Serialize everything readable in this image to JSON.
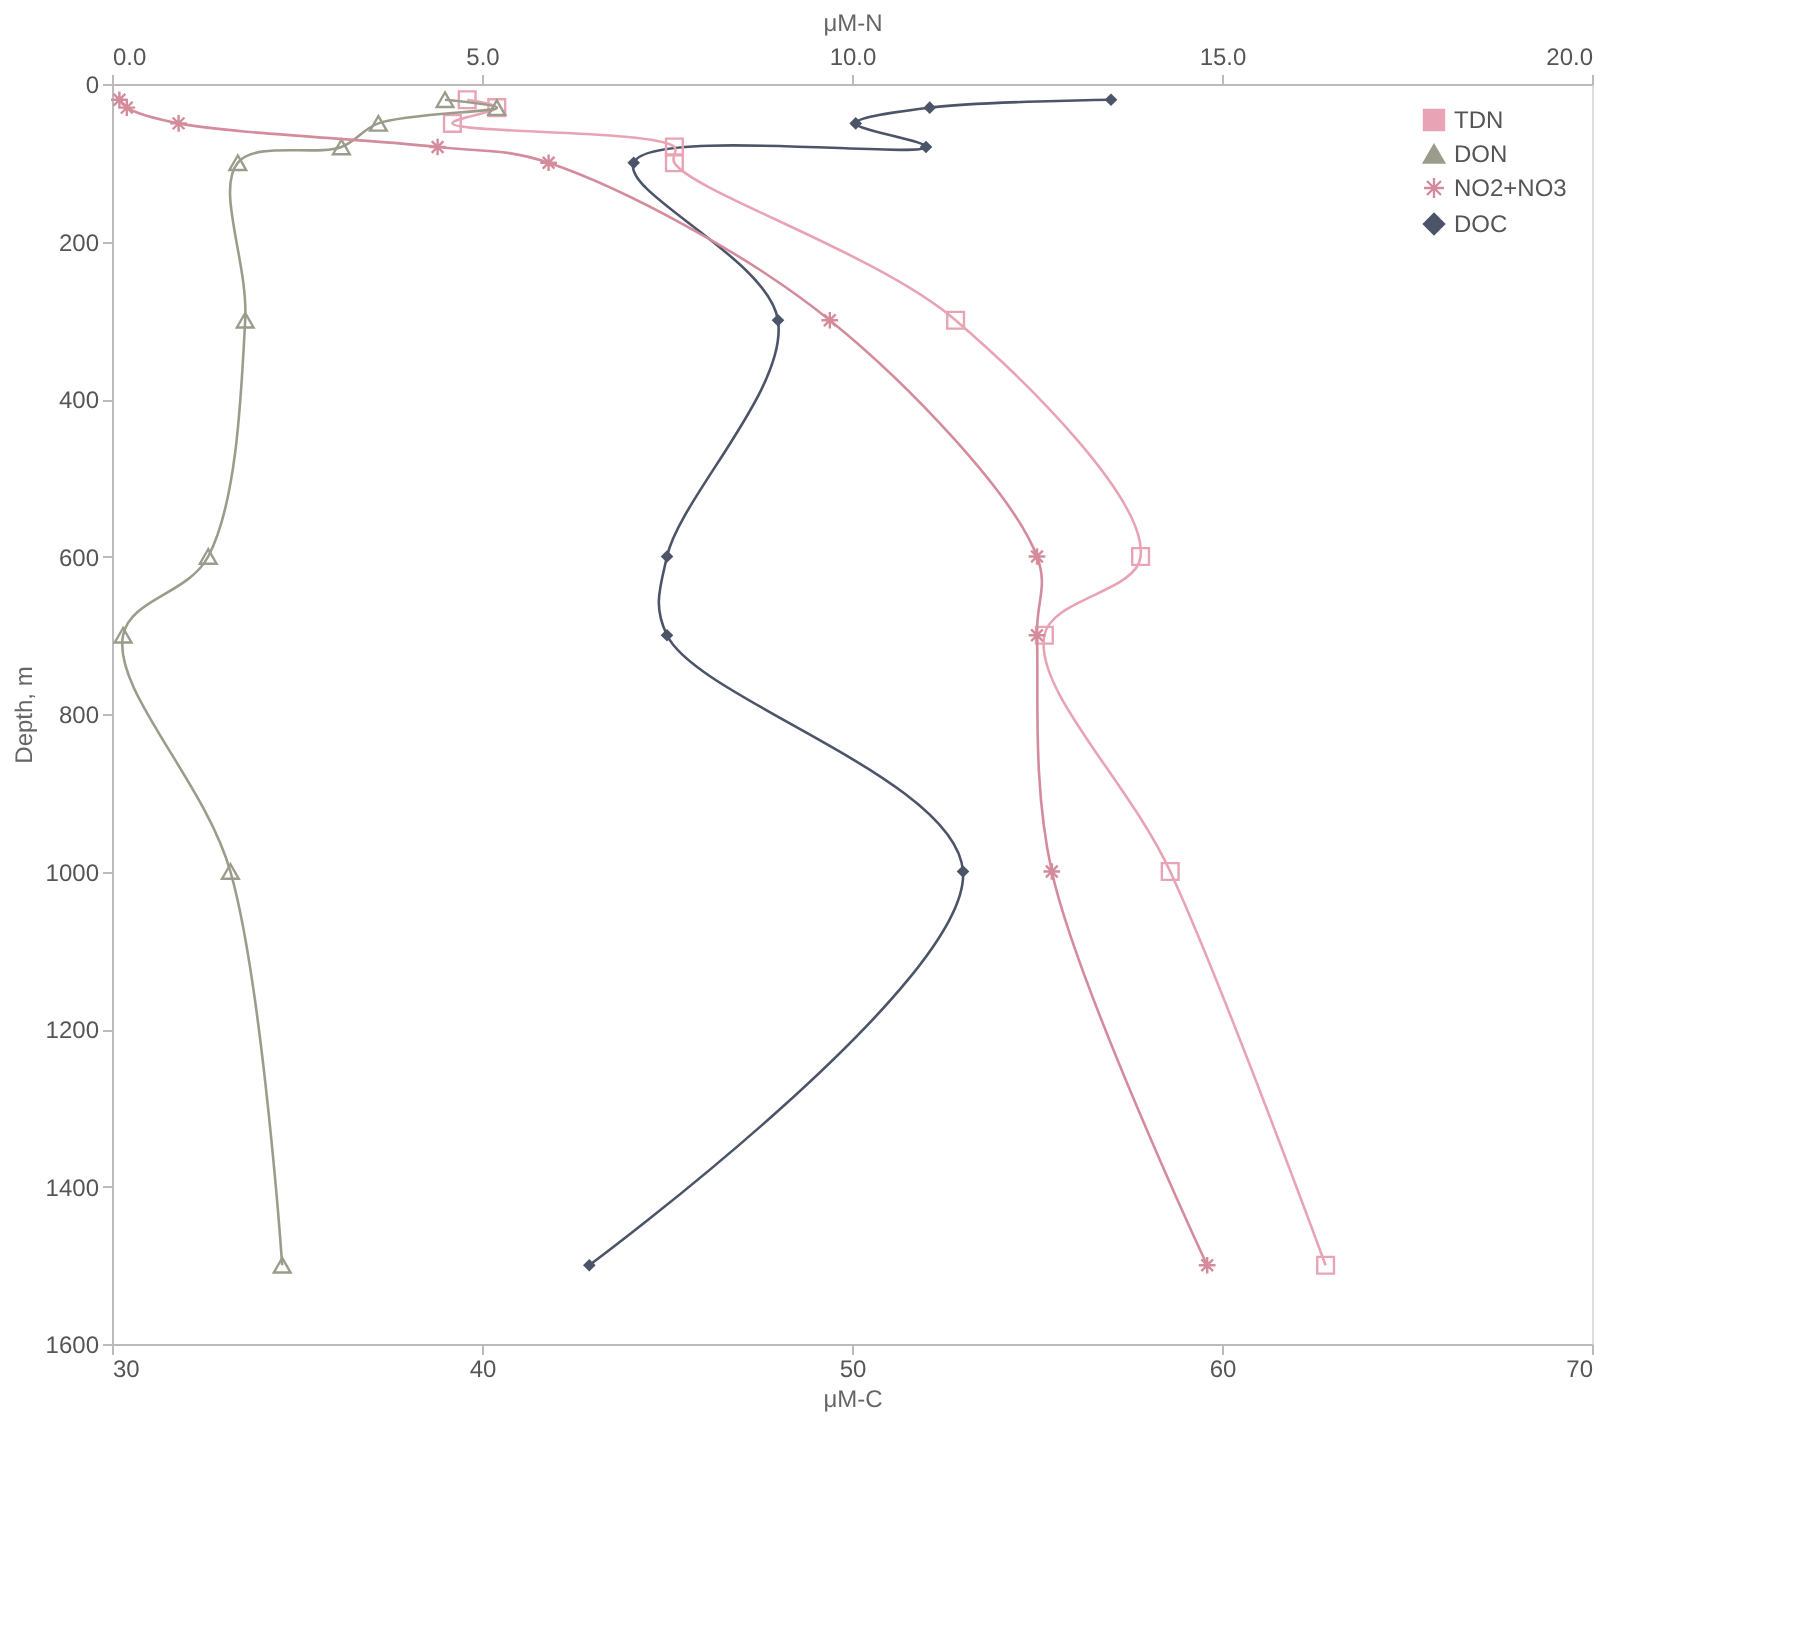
{
  "chart_data": {
    "type": "line",
    "xlabel": "μM-C",
    "x2label": "μM-N",
    "ylabel": "Depth, m",
    "xlim": [
      30,
      70
    ],
    "xticks": [
      30,
      40,
      50,
      60,
      70
    ],
    "x2lim": [
      0,
      20
    ],
    "x2ticks": [
      {
        "value": 0,
        "label": "0.0"
      },
      {
        "value": 5,
        "label": "5.0"
      },
      {
        "value": 10,
        "label": "10.0"
      },
      {
        "value": 15,
        "label": "15.0"
      },
      {
        "value": 20,
        "label": "20.0"
      }
    ],
    "ylim": [
      1600,
      0
    ],
    "yticks": [
      0,
      200,
      400,
      600,
      800,
      {
        "value": 1000,
        "label": "1000"
      },
      {
        "value": 1200,
        "label": "1200"
      },
      {
        "value": 1400,
        "label": "1400"
      },
      {
        "value": 1600,
        "label": "1600"
      }
    ],
    "line_style": "solid",
    "grid": false,
    "legend": "top right",
    "series": [
      {
        "name": "TDN",
        "color": "#e8a4b4",
        "marker": "square",
        "axis": "x2",
        "x": [
          4.8,
          5.2,
          4.6,
          7.6,
          7.6,
          11.4,
          13.9,
          12.6,
          14.3,
          16.4
        ],
        "values": [
          20,
          30,
          50,
          80,
          100,
          300,
          600,
          700,
          1000,
          1500
        ]
      },
      {
        "name": "DON",
        "color": "#9c9c8c",
        "marker": "triangle",
        "axis": "x2",
        "x": [
          4.5,
          5.2,
          3.6,
          3.1,
          1.7,
          1.8,
          1.3,
          0.15,
          1.6,
          2.3
        ],
        "values": [
          20,
          30,
          50,
          80,
          100,
          300,
          600,
          700,
          1000,
          1500
        ]
      },
      {
        "name": "NO2+NO3",
        "color": "#d48c9c",
        "marker": "cross",
        "axis": "x2",
        "x": [
          0.1,
          0.2,
          0.9,
          4.4,
          5.9,
          9.7,
          12.5,
          12.5,
          12.7,
          14.8
        ],
        "values": [
          20,
          30,
          50,
          80,
          100,
          300,
          600,
          700,
          1000,
          1500
        ]
      },
      {
        "name": "DOC",
        "color": "#4c5468",
        "marker": "diamond",
        "x": [
          57.0,
          52.1,
          50.1,
          52.0,
          44.1,
          48.0,
          45.0,
          45.0,
          53.0,
          42.9
        ],
        "values": [
          20,
          30,
          50,
          80,
          100,
          300,
          600,
          700,
          1000,
          1500
        ]
      }
    ]
  }
}
